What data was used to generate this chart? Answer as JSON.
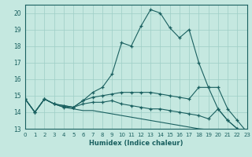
{
  "xlabel": "Humidex (Indice chaleur)",
  "ylabel": "",
  "background_color": "#c5e8e0",
  "grid_color": "#9ecec6",
  "line_color": "#1a6060",
  "xlim": [
    0,
    23
  ],
  "ylim": [
    13,
    20.5
  ],
  "yticks": [
    13,
    14,
    15,
    16,
    17,
    18,
    19,
    20
  ],
  "xticks": [
    0,
    1,
    2,
    3,
    4,
    5,
    6,
    7,
    8,
    9,
    10,
    11,
    12,
    13,
    14,
    15,
    16,
    17,
    18,
    19,
    20,
    21,
    22,
    23
  ],
  "series": [
    {
      "x": [
        0,
        1,
        2,
        3,
        4,
        5,
        6,
        7,
        8,
        9,
        10,
        11,
        12,
        13,
        14,
        15,
        16,
        17,
        18,
        19,
        20,
        21,
        22,
        23
      ],
      "y": [
        14.8,
        14.0,
        14.8,
        14.5,
        14.4,
        14.3,
        14.7,
        15.2,
        15.5,
        16.3,
        18.2,
        18.0,
        19.2,
        20.2,
        20.0,
        19.1,
        18.5,
        19.0,
        17.0,
        15.5,
        14.2,
        13.5,
        13.0,
        12.8
      ],
      "marker": "+",
      "with_marker": true
    },
    {
      "x": [
        0,
        1,
        2,
        3,
        4,
        5,
        6,
        7,
        8,
        9,
        10,
        11,
        12,
        13,
        14,
        15,
        16,
        17,
        18,
        19,
        20,
        21,
        22,
        23
      ],
      "y": [
        14.8,
        14.0,
        14.8,
        14.5,
        14.4,
        14.3,
        14.7,
        14.9,
        15.0,
        15.1,
        15.2,
        15.2,
        15.2,
        15.2,
        15.1,
        15.0,
        14.9,
        14.8,
        15.5,
        15.5,
        15.5,
        14.2,
        13.5,
        12.8
      ],
      "marker": "+",
      "with_marker": true
    },
    {
      "x": [
        0,
        1,
        2,
        3,
        4,
        5,
        6,
        7,
        8,
        9,
        10,
        11,
        12,
        13,
        14,
        15,
        16,
        17,
        18,
        19,
        20,
        21,
        22,
        23
      ],
      "y": [
        14.8,
        14.0,
        14.8,
        14.5,
        14.3,
        14.3,
        14.5,
        14.6,
        14.6,
        14.7,
        14.5,
        14.4,
        14.3,
        14.2,
        14.2,
        14.1,
        14.0,
        13.9,
        13.8,
        13.6,
        14.2,
        13.5,
        13.0,
        12.8
      ],
      "marker": "+",
      "with_marker": true
    },
    {
      "x": [
        0,
        1,
        2,
        3,
        4,
        5,
        6,
        7,
        8,
        9,
        10,
        11,
        12,
        13,
        14,
        15,
        16,
        17,
        18,
        19,
        20,
        21,
        22,
        23
      ],
      "y": [
        14.8,
        14.0,
        14.8,
        14.5,
        14.3,
        14.2,
        14.1,
        14.1,
        14.0,
        13.9,
        13.8,
        13.7,
        13.6,
        13.5,
        13.4,
        13.3,
        13.2,
        13.1,
        13.0,
        12.95,
        12.9,
        12.85,
        12.8,
        12.78
      ],
      "marker": null,
      "with_marker": false
    }
  ]
}
